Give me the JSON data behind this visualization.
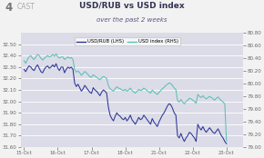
{
  "title": "USD/RUB vs USD index",
  "subtitle": "over the past 2 weeks",
  "legend": [
    "USD/RUB (LHS)",
    "USD index (RHS)"
  ],
  "x_labels": [
    "15-Oct",
    "16-Oct",
    "17-Oct",
    "18-Oct",
    "21-Oct",
    "22-Oct",
    "23-Oct"
  ],
  "lhs_color": "#2b3595",
  "rhs_color": "#5bbfb5",
  "lhs_ylim": [
    31.6,
    32.6
  ],
  "rhs_ylim": [
    79.0,
    80.8
  ],
  "lhs_yticks": [
    31.6,
    31.7,
    31.8,
    31.9,
    32.0,
    32.1,
    32.2,
    32.3,
    32.4,
    32.5
  ],
  "rhs_yticks": [
    79.0,
    79.2,
    79.4,
    79.6,
    79.8,
    80.0,
    80.2,
    80.4,
    80.6,
    80.8
  ],
  "bg_color": "#dcdce8",
  "fig_bg": "#f2f2f2",
  "title_color": "#333355",
  "subtitle_color": "#555588",
  "tick_color": "#666666",
  "grid_color": "#ffffff",
  "lhs_data": [
    32.28,
    32.26,
    32.29,
    32.31,
    32.3,
    32.28,
    32.27,
    32.3,
    32.32,
    32.29,
    32.26,
    32.25,
    32.28,
    32.3,
    32.31,
    32.29,
    32.3,
    32.32,
    32.3,
    32.33,
    32.29,
    32.27,
    32.3,
    32.3,
    32.25,
    32.28,
    32.3,
    32.29,
    32.3,
    32.28,
    32.16,
    32.13,
    32.15,
    32.12,
    32.09,
    32.11,
    32.14,
    32.12,
    32.1,
    32.08,
    32.07,
    32.12,
    32.1,
    32.09,
    32.07,
    32.05,
    32.08,
    32.1,
    32.09,
    32.07,
    31.95,
    31.88,
    31.85,
    31.83,
    31.87,
    31.9,
    31.88,
    31.87,
    31.85,
    31.84,
    31.86,
    31.83,
    31.85,
    31.88,
    31.84,
    31.82,
    31.8,
    31.83,
    31.86,
    31.84,
    31.85,
    31.88,
    31.86,
    31.84,
    31.82,
    31.8,
    31.85,
    31.82,
    31.8,
    31.78,
    31.82,
    31.85,
    31.88,
    31.9,
    31.93,
    31.96,
    31.98,
    31.97,
    31.94,
    31.9,
    31.88,
    31.7,
    31.68,
    31.72,
    31.68,
    31.65,
    31.68,
    31.7,
    31.73,
    31.72,
    31.7,
    31.68,
    31.65,
    31.8,
    31.77,
    31.75,
    31.78,
    31.75,
    31.73,
    31.75,
    31.77,
    31.75,
    31.73,
    31.72,
    31.74,
    31.76,
    31.73,
    31.7,
    31.68,
    31.65,
    31.63
  ],
  "rhs_data": [
    80.36,
    80.32,
    80.38,
    80.42,
    80.44,
    80.4,
    80.38,
    80.42,
    80.46,
    80.44,
    80.4,
    80.37,
    80.4,
    80.42,
    80.44,
    80.42,
    80.43,
    80.46,
    80.43,
    80.47,
    80.42,
    80.4,
    80.42,
    80.42,
    80.38,
    80.4,
    80.42,
    80.4,
    80.41,
    80.38,
    80.22,
    80.18,
    80.2,
    80.17,
    80.13,
    80.16,
    80.19,
    80.17,
    80.14,
    80.11,
    80.1,
    80.14,
    80.12,
    80.1,
    80.08,
    80.06,
    80.09,
    80.11,
    80.1,
    80.08,
    79.97,
    79.92,
    79.9,
    79.88,
    79.92,
    79.95,
    79.93,
    79.92,
    79.9,
    79.89,
    79.91,
    79.88,
    79.9,
    79.93,
    79.89,
    79.87,
    79.85,
    79.88,
    79.91,
    79.89,
    79.9,
    79.93,
    79.91,
    79.89,
    79.87,
    79.85,
    79.9,
    79.87,
    79.85,
    79.83,
    79.86,
    79.89,
    79.92,
    79.94,
    79.97,
    79.99,
    80.01,
    80.0,
    79.97,
    79.93,
    79.91,
    79.73,
    79.71,
    79.75,
    79.71,
    79.68,
    79.72,
    79.74,
    79.77,
    79.76,
    79.74,
    79.72,
    79.69,
    79.83,
    79.8,
    79.78,
    79.81,
    79.78,
    79.76,
    79.78,
    79.8,
    79.78,
    79.76,
    79.74,
    79.77,
    79.79,
    79.76,
    79.73,
    79.71,
    79.68,
    79.1
  ]
}
